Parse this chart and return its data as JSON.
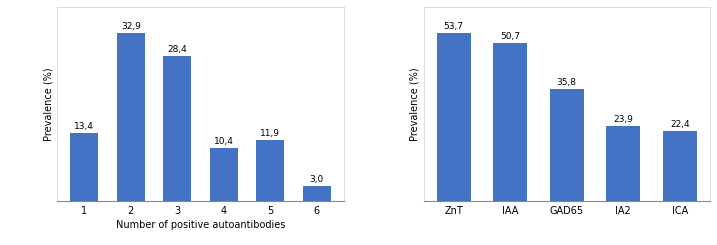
{
  "chart1": {
    "categories": [
      "1",
      "2",
      "3",
      "4",
      "5",
      "6"
    ],
    "values": [
      13.4,
      32.9,
      28.4,
      10.4,
      11.9,
      3.0
    ],
    "labels": [
      "13,4",
      "32,9",
      "28,4",
      "10,4",
      "11,9",
      "3,0"
    ],
    "xlabel": "Number of positive autoantibodies",
    "ylabel": "Prevalence (%)",
    "bar_color": "#4472C4",
    "ylim": [
      0,
      38
    ]
  },
  "chart2": {
    "categories": [
      "ZnT",
      "IAA",
      "GAD65",
      "IA2",
      "ICA"
    ],
    "values": [
      53.7,
      50.7,
      35.8,
      23.9,
      22.4
    ],
    "labels": [
      "53,7",
      "50,7",
      "35,8",
      "23,9",
      "22,4"
    ],
    "ylabel": "Prevalence (%)",
    "bar_color": "#4472C4",
    "ylim": [
      0,
      62
    ]
  },
  "background_color": "#ffffff",
  "label_fontsize": 6.5,
  "axis_label_fontsize": 7,
  "tick_fontsize": 7,
  "box_color": "#cccccc"
}
